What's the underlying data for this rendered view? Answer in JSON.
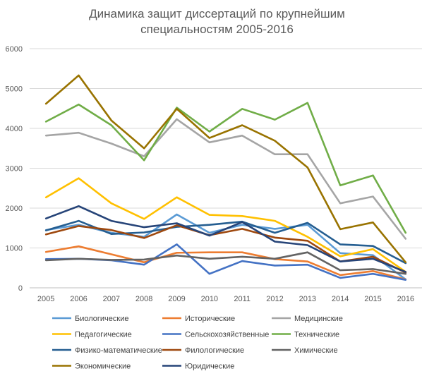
{
  "chart_data": {
    "type": "line",
    "title_lines": [
      "Динамика защит диссертаций по крупнейшим",
      "специальностям 2005-2016"
    ],
    "xlabel": "",
    "ylabel": "",
    "x": [
      "2005",
      "2006",
      "2007",
      "2008",
      "2009",
      "2010",
      "2011",
      "2012",
      "2013",
      "2014",
      "2015",
      "2016"
    ],
    "ylim": [
      0,
      6000
    ],
    "yticks": [
      "0",
      "1000",
      "2000",
      "3000",
      "4000",
      "5000",
      "6000"
    ],
    "grid": true,
    "legend_position": "bottom",
    "series": [
      {
        "name": "Биологические",
        "color": "#5B9BD5",
        "values": [
          1450,
          1580,
          1380,
          1280,
          1840,
          1380,
          1580,
          1480,
          1580,
          870,
          820,
          210
        ]
      },
      {
        "name": "Исторические",
        "color": "#ED7D31",
        "values": [
          900,
          1040,
          840,
          640,
          880,
          890,
          890,
          720,
          660,
          320,
          420,
          210
        ]
      },
      {
        "name": "Медицинские",
        "color": "#A5A5A5",
        "values": [
          3820,
          3890,
          3620,
          3300,
          4230,
          3650,
          3820,
          3350,
          3350,
          2120,
          2290,
          1230
        ]
      },
      {
        "name": "Педагогические",
        "color": "#FFC000",
        "values": [
          2270,
          2750,
          2120,
          1730,
          2270,
          1830,
          1800,
          1680,
          1280,
          790,
          970,
          400
        ]
      },
      {
        "name": "Сельскохозяйственные",
        "color": "#4472C4",
        "values": [
          720,
          730,
          690,
          580,
          1090,
          350,
          670,
          560,
          580,
          250,
          350,
          200
        ]
      },
      {
        "name": "Технические",
        "color": "#70AD47",
        "values": [
          4170,
          4600,
          4080,
          3200,
          4520,
          3920,
          4490,
          4220,
          4640,
          2570,
          2820,
          1380
        ]
      },
      {
        "name": "Физико-математические",
        "color": "#255E91",
        "values": [
          1440,
          1680,
          1350,
          1390,
          1530,
          1580,
          1660,
          1380,
          1630,
          1090,
          1050,
          620
        ]
      },
      {
        "name": "Филологические",
        "color": "#9E480E",
        "values": [
          1340,
          1550,
          1450,
          1250,
          1570,
          1320,
          1480,
          1260,
          1180,
          660,
          780,
          380
        ]
      },
      {
        "name": "Химические",
        "color": "#636363",
        "values": [
          690,
          730,
          700,
          710,
          810,
          730,
          780,
          730,
          890,
          440,
          470,
          350
        ]
      },
      {
        "name": "Экономические",
        "color": "#997300",
        "values": [
          4620,
          5330,
          4200,
          3500,
          4490,
          3760,
          4080,
          3690,
          3020,
          1470,
          1640,
          640
        ]
      },
      {
        "name": "Юридические",
        "color": "#264478",
        "values": [
          1740,
          2050,
          1680,
          1520,
          1620,
          1310,
          1650,
          1160,
          1070,
          660,
          730,
          400
        ]
      }
    ]
  }
}
